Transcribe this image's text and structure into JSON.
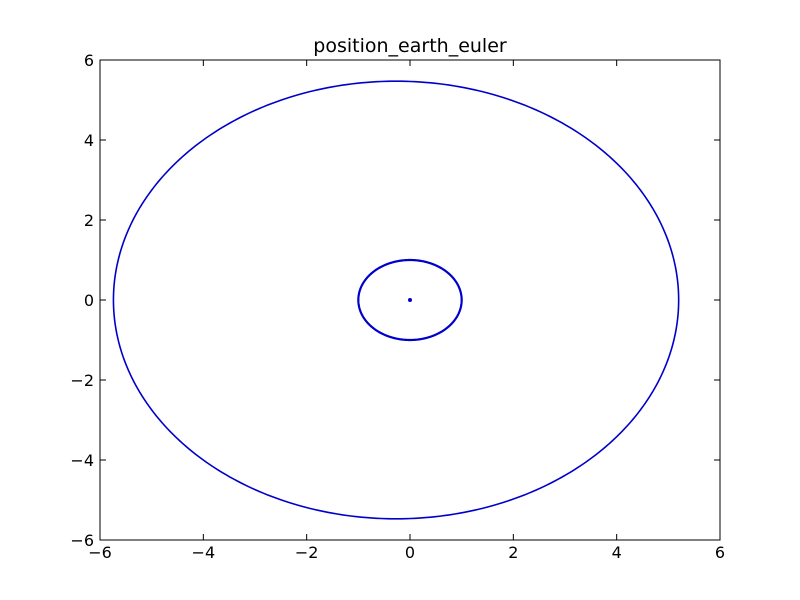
{
  "chart_data": {
    "type": "line",
    "title": "position_earth_euler",
    "xlabel": "",
    "ylabel": "",
    "xlim": [
      -6,
      6
    ],
    "ylim": [
      -6,
      6
    ],
    "xticks": [
      -6,
      -4,
      -2,
      0,
      2,
      4,
      6
    ],
    "yticks": [
      -6,
      -4,
      -2,
      0,
      2,
      4,
      6
    ],
    "xtick_labels": [
      "−6",
      "−4",
      "−2",
      "0",
      "2",
      "4",
      "6"
    ],
    "ytick_labels": [
      "−6",
      "−4",
      "−2",
      "0",
      "2",
      "4",
      "6"
    ],
    "grid": false,
    "legend": "none",
    "series": [
      {
        "color": "#0000cc",
        "kind": "closed-orbit",
        "center": [
          -0.27,
          0.0
        ],
        "radius_x": 5.47,
        "radius_y": 5.47,
        "extent_x": [
          -5.74,
          5.2
        ],
        "extent_y": [
          -5.47,
          5.47
        ]
      },
      {
        "color": "#0000cc",
        "kind": "closed-orbit",
        "center": [
          0.0,
          0.0
        ],
        "radius_x": 1.0,
        "radius_y": 1.0,
        "extent_x": [
          -1.0,
          1.0
        ],
        "extent_y": [
          -1.0,
          1.0
        ]
      },
      {
        "color": "#0000cc",
        "kind": "point",
        "center": [
          0.0,
          0.0
        ]
      }
    ]
  }
}
